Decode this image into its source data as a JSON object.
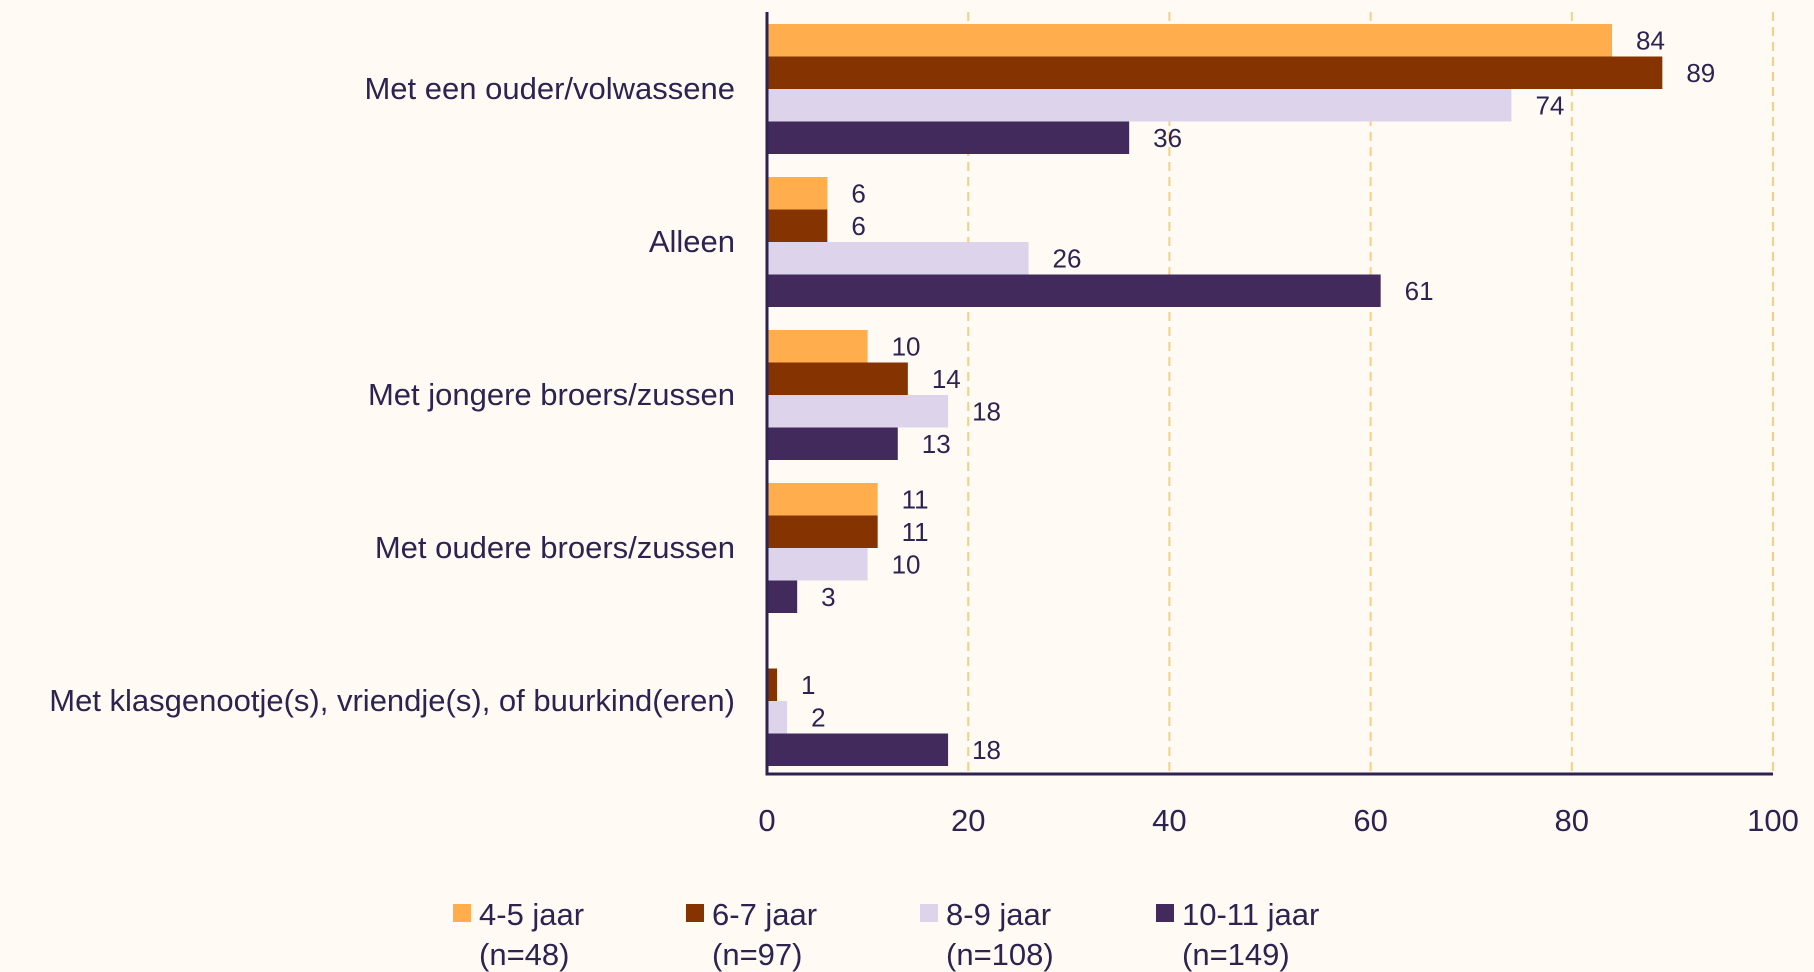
{
  "colors": {
    "background": "#fffbf4",
    "text": "#2e2350",
    "axis": "#2e2350",
    "grid": "#f5cf85"
  },
  "chart_data": {
    "type": "bar",
    "orientation": "horizontal",
    "categories": [
      "Met een ouder/volwassene",
      "Alleen",
      "Met jongere broers/zussen",
      "Met oudere broers/zussen",
      "Met klasgenootje(s), vriendje(s), of buurkind(eren)"
    ],
    "series": [
      {
        "name": "4-5 jaar",
        "sub": "(n=48)",
        "color": "#ffad4d",
        "values": [
          84,
          6,
          10,
          11,
          null
        ]
      },
      {
        "name": "6-7 jaar",
        "sub": "(n=97)",
        "color": "#853300",
        "values": [
          89,
          6,
          14,
          11,
          1
        ]
      },
      {
        "name": "8-9 jaar",
        "sub": "(n=108)",
        "color": "#ddd4ec",
        "values": [
          74,
          26,
          18,
          10,
          2
        ]
      },
      {
        "name": "10-11 jaar",
        "sub": "(n=149)",
        "color": "#432a5d",
        "values": [
          36,
          61,
          13,
          3,
          18
        ]
      }
    ],
    "xlim": [
      0,
      100
    ],
    "xticks": [
      0,
      20,
      40,
      60,
      80,
      100
    ],
    "grid": "vertical-dashed",
    "legend": "bottom",
    "title": "",
    "xlabel": "",
    "ylabel": ""
  }
}
